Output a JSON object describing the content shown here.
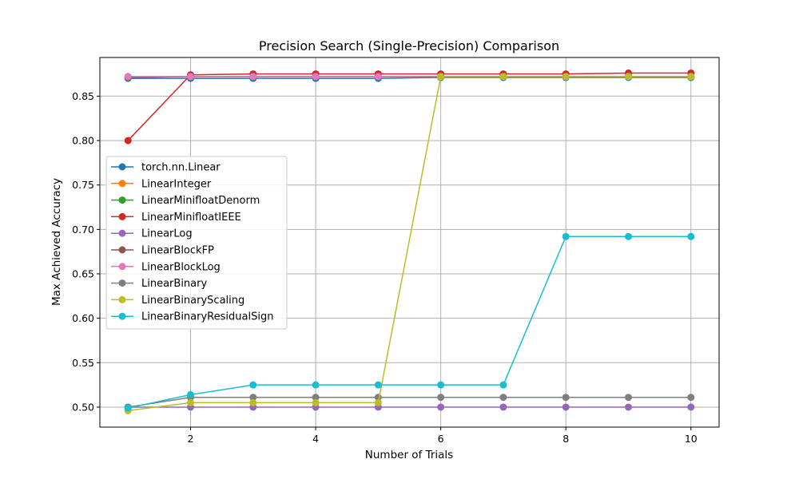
{
  "chart_data": {
    "type": "line",
    "title": "Precision Search (Single-Precision) Comparison",
    "xlabel": "Number of Trials",
    "ylabel": "Max Achieved Accuracy",
    "xlim": [
      0.55,
      10.45
    ],
    "ylim": [
      0.4775,
      0.8935
    ],
    "xticks": [
      2,
      4,
      6,
      8,
      10
    ],
    "yticks": [
      0.5,
      0.55,
      0.6,
      0.65,
      0.7,
      0.75,
      0.8,
      0.85
    ],
    "ytick_labels": [
      "0.50",
      "0.55",
      "0.60",
      "0.65",
      "0.70",
      "0.75",
      "0.80",
      "0.85"
    ],
    "grid": true,
    "legend_position": "center-left",
    "x": [
      1,
      2,
      3,
      4,
      5,
      6,
      7,
      8,
      9,
      10
    ],
    "series": [
      {
        "name": "torch.nn.Linear",
        "color": "#1f77b4",
        "values": [
          0.87,
          0.87,
          0.87,
          0.87,
          0.87,
          0.871,
          0.871,
          0.871,
          0.871,
          0.871
        ]
      },
      {
        "name": "LinearInteger",
        "color": "#ff7f0e",
        "values": [
          0.872,
          0.872,
          0.872,
          0.872,
          0.872,
          0.872,
          0.872,
          0.872,
          0.872,
          0.872
        ]
      },
      {
        "name": "LinearMinifloatDenorm",
        "color": "#2ca02c",
        "values": [
          0.871,
          0.872,
          0.872,
          0.872,
          0.872,
          0.872,
          0.872,
          0.872,
          0.872,
          0.872
        ]
      },
      {
        "name": "LinearMinifloatIEEE",
        "color": "#d62728",
        "values": [
          0.8,
          0.874,
          0.875,
          0.875,
          0.875,
          0.875,
          0.875,
          0.875,
          0.876,
          0.876
        ]
      },
      {
        "name": "LinearLog",
        "color": "#9467bd",
        "values": [
          0.5,
          0.5,
          0.5,
          0.5,
          0.5,
          0.5,
          0.5,
          0.5,
          0.5,
          0.5
        ]
      },
      {
        "name": "LinearBlockFP",
        "color": "#8c564b",
        "values": [
          0.871,
          0.872,
          0.872,
          0.872,
          0.872,
          0.872,
          0.872,
          0.872,
          0.872,
          0.872
        ]
      },
      {
        "name": "LinearBlockLog",
        "color": "#e377c2",
        "values": [
          0.872,
          0.872,
          0.872,
          0.872,
          0.872,
          0.872,
          0.872,
          0.872,
          0.872,
          0.872
        ]
      },
      {
        "name": "LinearBinary",
        "color": "#7f7f7f",
        "values": [
          0.5,
          0.511,
          0.511,
          0.511,
          0.511,
          0.511,
          0.511,
          0.511,
          0.511,
          0.511
        ]
      },
      {
        "name": "LinearBinaryScaling",
        "color": "#bcbd22",
        "values": [
          0.496,
          0.505,
          0.505,
          0.505,
          0.505,
          0.872,
          0.872,
          0.872,
          0.872,
          0.872
        ]
      },
      {
        "name": "LinearBinaryResidualSign",
        "color": "#17becf",
        "values": [
          0.499,
          0.514,
          0.525,
          0.525,
          0.525,
          0.525,
          0.525,
          0.692,
          0.692,
          0.692
        ]
      }
    ]
  }
}
